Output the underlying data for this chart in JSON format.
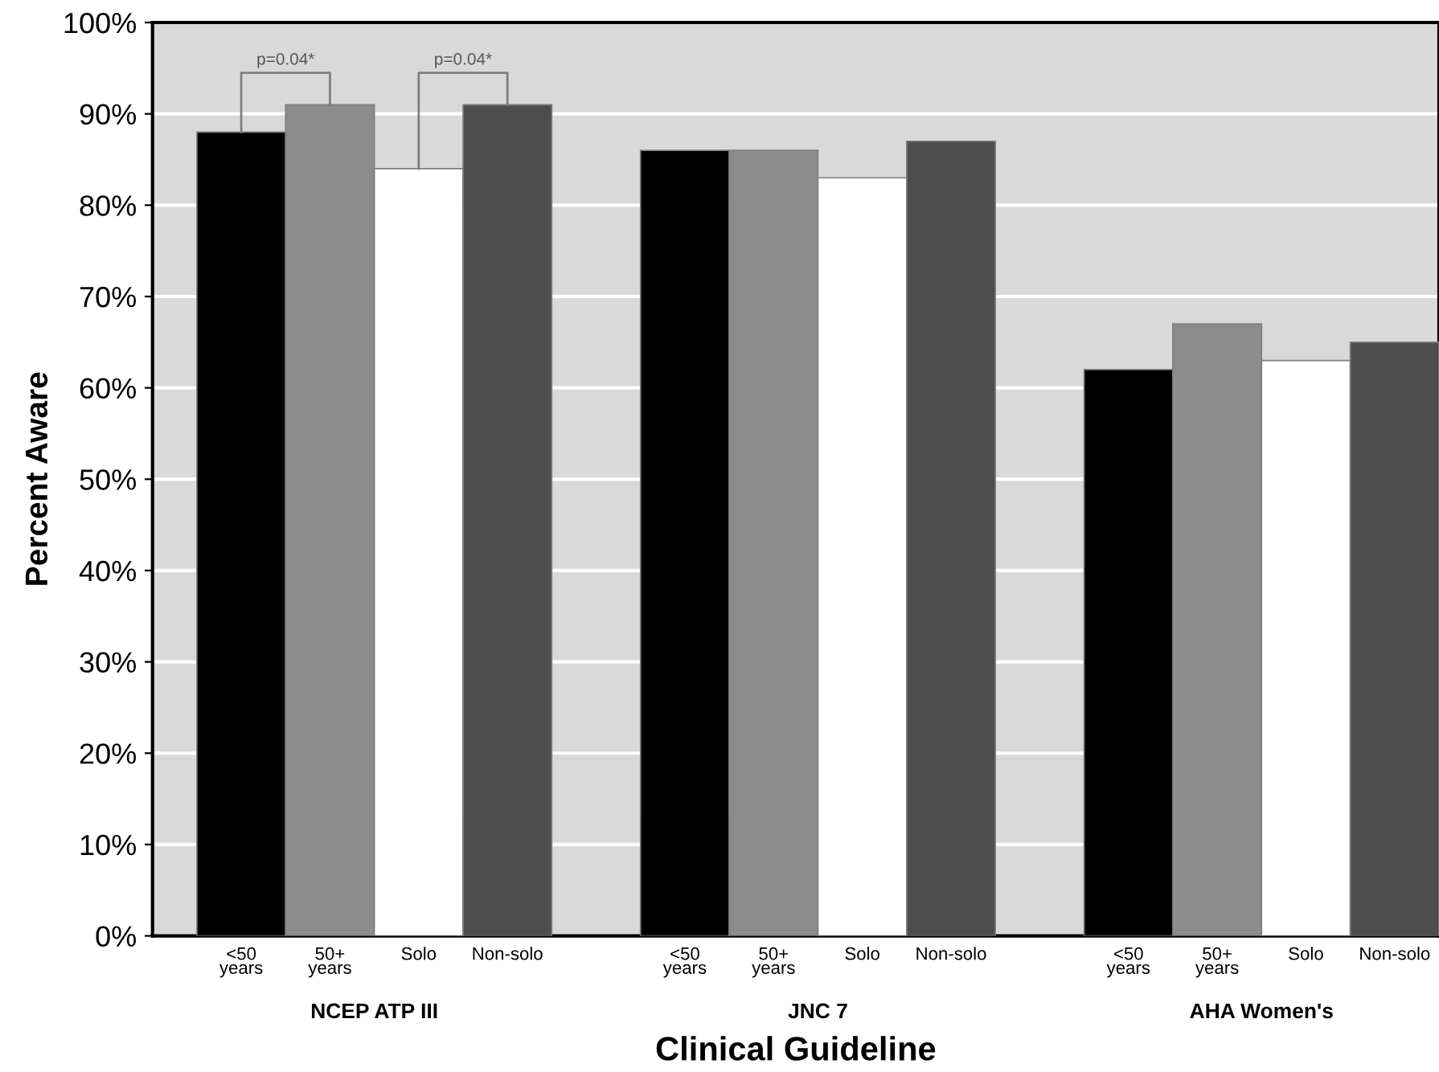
{
  "chart_data": {
    "type": "bar",
    "xlabel": "Clinical Guideline",
    "ylabel": "Percent Aware",
    "categories": [
      "NCEP ATP III",
      "JNC 7",
      "AHA Women's"
    ],
    "series": [
      {
        "name": "<50\nyears",
        "color": "#000000",
        "values": [
          88,
          86,
          62
        ]
      },
      {
        "name": "50+\nyears",
        "color": "#8c8c8c",
        "values": [
          91,
          86,
          67
        ]
      },
      {
        "name": "Solo",
        "color": "#ffffff",
        "values": [
          84,
          83,
          63
        ]
      },
      {
        "name": "Non-solo",
        "color": "#4d4d4d",
        "values": [
          91,
          87,
          65
        ]
      }
    ],
    "ylim": [
      0,
      100
    ],
    "yticks": [
      {
        "value": 0,
        "label": "0%"
      },
      {
        "value": 10,
        "label": "10%"
      },
      {
        "value": 20,
        "label": "20%"
      },
      {
        "value": 30,
        "label": "30%"
      },
      {
        "value": 40,
        "label": "40%"
      },
      {
        "value": 50,
        "label": "50%"
      },
      {
        "value": 60,
        "label": "60%"
      },
      {
        "value": 70,
        "label": "70%"
      },
      {
        "value": 80,
        "label": "80%"
      },
      {
        "value": 90,
        "label": "90%"
      },
      {
        "value": 100,
        "label": "100%"
      }
    ],
    "grid": "y",
    "annotations": [
      "p=0.04*",
      "p=0.04*"
    ]
  }
}
